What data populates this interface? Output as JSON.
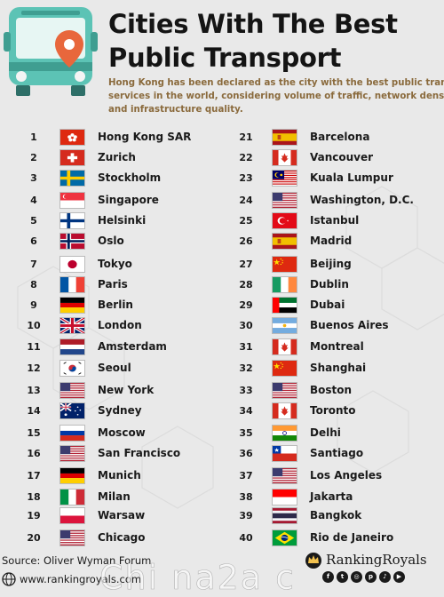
{
  "title": {
    "line1": "Cities With The Best",
    "line2": "Public Transport"
  },
  "subtitle": {
    "line1": "Hong Kong has been declared as the city with the best public transport",
    "line2": "services in the world, considering volume of traffic, network density",
    "line3": "and infrastructure quality."
  },
  "rankings": [
    {
      "rank": "1",
      "city": "Hong Kong SAR",
      "flag": "hong-kong"
    },
    {
      "rank": "2",
      "city": "Zurich",
      "flag": "switzerland"
    },
    {
      "rank": "3",
      "city": "Stockholm",
      "flag": "sweden"
    },
    {
      "rank": "4",
      "city": "Singapore",
      "flag": "singapore"
    },
    {
      "rank": "5",
      "city": "Helsinki",
      "flag": "finland"
    },
    {
      "rank": "6",
      "city": "Oslo",
      "flag": "norway"
    },
    {
      "rank": "7",
      "city": "Tokyo",
      "flag": "japan"
    },
    {
      "rank": "8",
      "city": "Paris",
      "flag": "france"
    },
    {
      "rank": "9",
      "city": "Berlin",
      "flag": "germany"
    },
    {
      "rank": "10",
      "city": "London",
      "flag": "uk"
    },
    {
      "rank": "11",
      "city": "Amsterdam",
      "flag": "netherlands"
    },
    {
      "rank": "12",
      "city": "Seoul",
      "flag": "south-korea"
    },
    {
      "rank": "13",
      "city": "New York",
      "flag": "usa"
    },
    {
      "rank": "14",
      "city": "Sydney",
      "flag": "australia"
    },
    {
      "rank": "15",
      "city": "Moscow",
      "flag": "russia"
    },
    {
      "rank": "16",
      "city": "San Francisco",
      "flag": "usa"
    },
    {
      "rank": "17",
      "city": "Munich",
      "flag": "germany"
    },
    {
      "rank": "18",
      "city": "Milan",
      "flag": "italy"
    },
    {
      "rank": "19",
      "city": "Warsaw",
      "flag": "poland"
    },
    {
      "rank": "20",
      "city": "Chicago",
      "flag": "usa"
    },
    {
      "rank": "21",
      "city": "Barcelona",
      "flag": "spain"
    },
    {
      "rank": "22",
      "city": "Vancouver",
      "flag": "canada"
    },
    {
      "rank": "23",
      "city": "Kuala Lumpur",
      "flag": "malaysia"
    },
    {
      "rank": "24",
      "city": "Washington, D.C.",
      "flag": "usa"
    },
    {
      "rank": "25",
      "city": "Istanbul",
      "flag": "turkey"
    },
    {
      "rank": "26",
      "city": "Madrid",
      "flag": "spain"
    },
    {
      "rank": "27",
      "city": "Beijing",
      "flag": "china"
    },
    {
      "rank": "28",
      "city": "Dublin",
      "flag": "ireland"
    },
    {
      "rank": "29",
      "city": "Dubai",
      "flag": "uae"
    },
    {
      "rank": "30",
      "city": "Buenos Aires",
      "flag": "argentina"
    },
    {
      "rank": "31",
      "city": "Montreal",
      "flag": "canada"
    },
    {
      "rank": "32",
      "city": "Shanghai",
      "flag": "china"
    },
    {
      "rank": "33",
      "city": "Boston",
      "flag": "usa"
    },
    {
      "rank": "34",
      "city": "Toronto",
      "flag": "canada"
    },
    {
      "rank": "35",
      "city": "Delhi",
      "flag": "india"
    },
    {
      "rank": "36",
      "city": "Santiago",
      "flag": "chile"
    },
    {
      "rank": "37",
      "city": "Los Angeles",
      "flag": "usa"
    },
    {
      "rank": "38",
      "city": "Jakarta",
      "flag": "indonesia"
    },
    {
      "rank": "39",
      "city": "Bangkok",
      "flag": "thailand"
    },
    {
      "rank": "40",
      "city": "Rio de Janeiro",
      "flag": "brazil"
    }
  ],
  "footer": {
    "source": "Source: Oliver Wyman Forum",
    "url": "www.rankingroyals.com",
    "brand": "RankingRoyals",
    "watermark": "Chi na2a c"
  },
  "colors": {
    "subtitle": "#8a6a3c",
    "bus_teal": "#5cc3b5",
    "pin_orange": "#e8673c"
  },
  "icons": {
    "header": "bus-icon",
    "pin": "location-pin-icon",
    "globe": "globe-icon",
    "brand": "crown-icon",
    "socials": [
      "facebook-icon",
      "twitter-icon",
      "instagram-icon",
      "pinterest-icon",
      "tiktok-icon",
      "youtube-icon"
    ]
  }
}
